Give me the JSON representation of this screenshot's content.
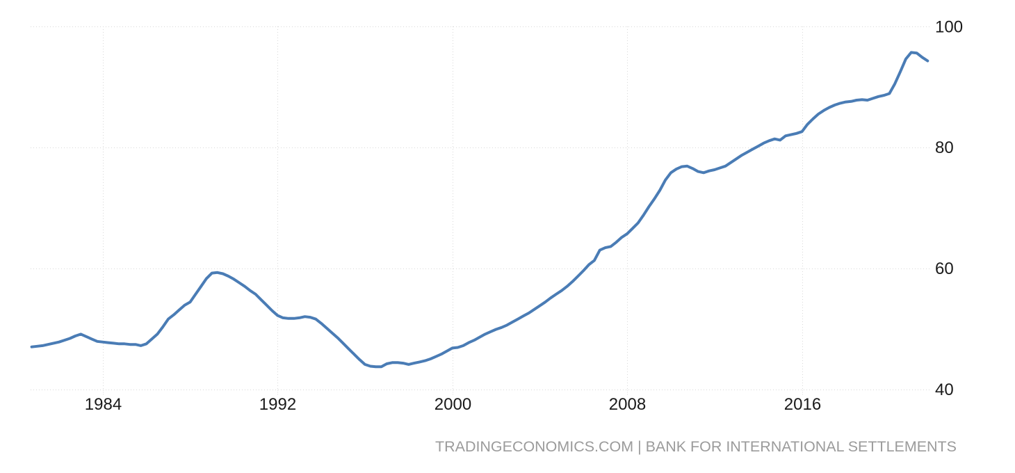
{
  "chart_data": {
    "type": "line",
    "title": "",
    "xlabel": "",
    "ylabel": "",
    "x_ticks": [
      1984,
      1992,
      2000,
      2008,
      2016
    ],
    "y_ticks": [
      40,
      60,
      80,
      100
    ],
    "xlim": [
      1980.7,
      2021.9
    ],
    "ylim": [
      40,
      100
    ],
    "grid": "dotted",
    "y_axis_position": "right",
    "legend": "none",
    "series": [
      {
        "name": "index",
        "color": "#4a7cb5",
        "points": [
          [
            1980.75,
            47.0
          ],
          [
            1981.0,
            47.1
          ],
          [
            1981.25,
            47.2
          ],
          [
            1981.5,
            47.4
          ],
          [
            1981.75,
            47.6
          ],
          [
            1982.0,
            47.8
          ],
          [
            1982.25,
            48.1
          ],
          [
            1982.5,
            48.4
          ],
          [
            1982.75,
            48.8
          ],
          [
            1983.0,
            49.1
          ],
          [
            1983.25,
            48.7
          ],
          [
            1983.5,
            48.3
          ],
          [
            1983.75,
            47.9
          ],
          [
            1984.0,
            47.8
          ],
          [
            1984.25,
            47.7
          ],
          [
            1984.5,
            47.6
          ],
          [
            1984.75,
            47.5
          ],
          [
            1985.0,
            47.5
          ],
          [
            1985.25,
            47.4
          ],
          [
            1985.5,
            47.4
          ],
          [
            1985.75,
            47.2
          ],
          [
            1986.0,
            47.5
          ],
          [
            1986.25,
            48.3
          ],
          [
            1986.5,
            49.1
          ],
          [
            1986.75,
            50.3
          ],
          [
            1987.0,
            51.6
          ],
          [
            1987.25,
            52.3
          ],
          [
            1987.5,
            53.1
          ],
          [
            1987.75,
            53.9
          ],
          [
            1988.0,
            54.4
          ],
          [
            1988.25,
            55.7
          ],
          [
            1988.5,
            57.0
          ],
          [
            1988.75,
            58.3
          ],
          [
            1989.0,
            59.2
          ],
          [
            1989.25,
            59.3
          ],
          [
            1989.5,
            59.1
          ],
          [
            1989.75,
            58.7
          ],
          [
            1990.0,
            58.2
          ],
          [
            1990.25,
            57.6
          ],
          [
            1990.5,
            57.0
          ],
          [
            1990.75,
            56.3
          ],
          [
            1991.0,
            55.7
          ],
          [
            1991.25,
            54.8
          ],
          [
            1991.5,
            53.9
          ],
          [
            1991.75,
            53.0
          ],
          [
            1992.0,
            52.2
          ],
          [
            1992.25,
            51.8
          ],
          [
            1992.5,
            51.7
          ],
          [
            1992.75,
            51.7
          ],
          [
            1993.0,
            51.8
          ],
          [
            1993.25,
            52.0
          ],
          [
            1993.5,
            51.9
          ],
          [
            1993.75,
            51.6
          ],
          [
            1994.0,
            50.9
          ],
          [
            1994.25,
            50.1
          ],
          [
            1994.5,
            49.3
          ],
          [
            1994.75,
            48.5
          ],
          [
            1995.0,
            47.6
          ],
          [
            1995.25,
            46.7
          ],
          [
            1995.5,
            45.8
          ],
          [
            1995.75,
            44.9
          ],
          [
            1996.0,
            44.1
          ],
          [
            1996.25,
            43.8
          ],
          [
            1996.5,
            43.7
          ],
          [
            1996.75,
            43.7
          ],
          [
            1997.0,
            44.2
          ],
          [
            1997.25,
            44.4
          ],
          [
            1997.5,
            44.4
          ],
          [
            1997.75,
            44.3
          ],
          [
            1998.0,
            44.1
          ],
          [
            1998.25,
            44.3
          ],
          [
            1998.5,
            44.5
          ],
          [
            1998.75,
            44.7
          ],
          [
            1999.0,
            45.0
          ],
          [
            1999.25,
            45.4
          ],
          [
            1999.5,
            45.8
          ],
          [
            1999.75,
            46.3
          ],
          [
            2000.0,
            46.8
          ],
          [
            2000.25,
            46.9
          ],
          [
            2000.5,
            47.2
          ],
          [
            2000.75,
            47.7
          ],
          [
            2001.0,
            48.1
          ],
          [
            2001.25,
            48.6
          ],
          [
            2001.5,
            49.1
          ],
          [
            2001.75,
            49.5
          ],
          [
            2002.0,
            49.9
          ],
          [
            2002.25,
            50.2
          ],
          [
            2002.5,
            50.6
          ],
          [
            2002.75,
            51.1
          ],
          [
            2003.0,
            51.6
          ],
          [
            2003.25,
            52.1
          ],
          [
            2003.5,
            52.6
          ],
          [
            2003.75,
            53.2
          ],
          [
            2004.0,
            53.8
          ],
          [
            2004.25,
            54.4
          ],
          [
            2004.5,
            55.1
          ],
          [
            2004.75,
            55.7
          ],
          [
            2005.0,
            56.3
          ],
          [
            2005.25,
            57.0
          ],
          [
            2005.5,
            57.8
          ],
          [
            2005.75,
            58.7
          ],
          [
            2006.0,
            59.6
          ],
          [
            2006.25,
            60.6
          ],
          [
            2006.5,
            61.3
          ],
          [
            2006.75,
            63.0
          ],
          [
            2007.0,
            63.4
          ],
          [
            2007.25,
            63.6
          ],
          [
            2007.5,
            64.3
          ],
          [
            2007.75,
            65.1
          ],
          [
            2008.0,
            65.7
          ],
          [
            2008.25,
            66.6
          ],
          [
            2008.5,
            67.5
          ],
          [
            2008.75,
            68.8
          ],
          [
            2009.0,
            70.2
          ],
          [
            2009.25,
            71.5
          ],
          [
            2009.5,
            72.9
          ],
          [
            2009.75,
            74.6
          ],
          [
            2010.0,
            75.8
          ],
          [
            2010.25,
            76.4
          ],
          [
            2010.5,
            76.8
          ],
          [
            2010.75,
            76.9
          ],
          [
            2011.0,
            76.5
          ],
          [
            2011.25,
            76.0
          ],
          [
            2011.5,
            75.8
          ],
          [
            2011.75,
            76.1
          ],
          [
            2012.0,
            76.3
          ],
          [
            2012.25,
            76.6
          ],
          [
            2012.5,
            76.9
          ],
          [
            2012.75,
            77.5
          ],
          [
            2013.0,
            78.1
          ],
          [
            2013.25,
            78.7
          ],
          [
            2013.5,
            79.2
          ],
          [
            2013.75,
            79.7
          ],
          [
            2014.0,
            80.2
          ],
          [
            2014.25,
            80.7
          ],
          [
            2014.5,
            81.1
          ],
          [
            2014.75,
            81.4
          ],
          [
            2015.0,
            81.2
          ],
          [
            2015.25,
            81.9
          ],
          [
            2015.5,
            82.1
          ],
          [
            2015.75,
            82.3
          ],
          [
            2016.0,
            82.6
          ],
          [
            2016.25,
            83.8
          ],
          [
            2016.5,
            84.7
          ],
          [
            2016.75,
            85.5
          ],
          [
            2017.0,
            86.1
          ],
          [
            2017.25,
            86.6
          ],
          [
            2017.5,
            87.0
          ],
          [
            2017.75,
            87.3
          ],
          [
            2018.0,
            87.5
          ],
          [
            2018.25,
            87.6
          ],
          [
            2018.5,
            87.8
          ],
          [
            2018.75,
            87.9
          ],
          [
            2019.0,
            87.8
          ],
          [
            2019.25,
            88.1
          ],
          [
            2019.5,
            88.4
          ],
          [
            2019.75,
            88.6
          ],
          [
            2020.0,
            88.9
          ],
          [
            2020.25,
            90.5
          ],
          [
            2020.5,
            92.5
          ],
          [
            2020.75,
            94.6
          ],
          [
            2021.0,
            95.7
          ],
          [
            2021.25,
            95.6
          ],
          [
            2021.5,
            94.9
          ],
          [
            2021.75,
            94.3
          ]
        ]
      }
    ]
  },
  "footer": {
    "attribution": "TRADINGECONOMICS.COM | BANK FOR INTERNATIONAL SETTLEMENTS"
  },
  "colors": {
    "line": "#4a7cb5",
    "grid": "#d8d8d8",
    "tick_label": "#1a1a1a",
    "attribution": "#9b9b9b",
    "background": "#ffffff"
  }
}
